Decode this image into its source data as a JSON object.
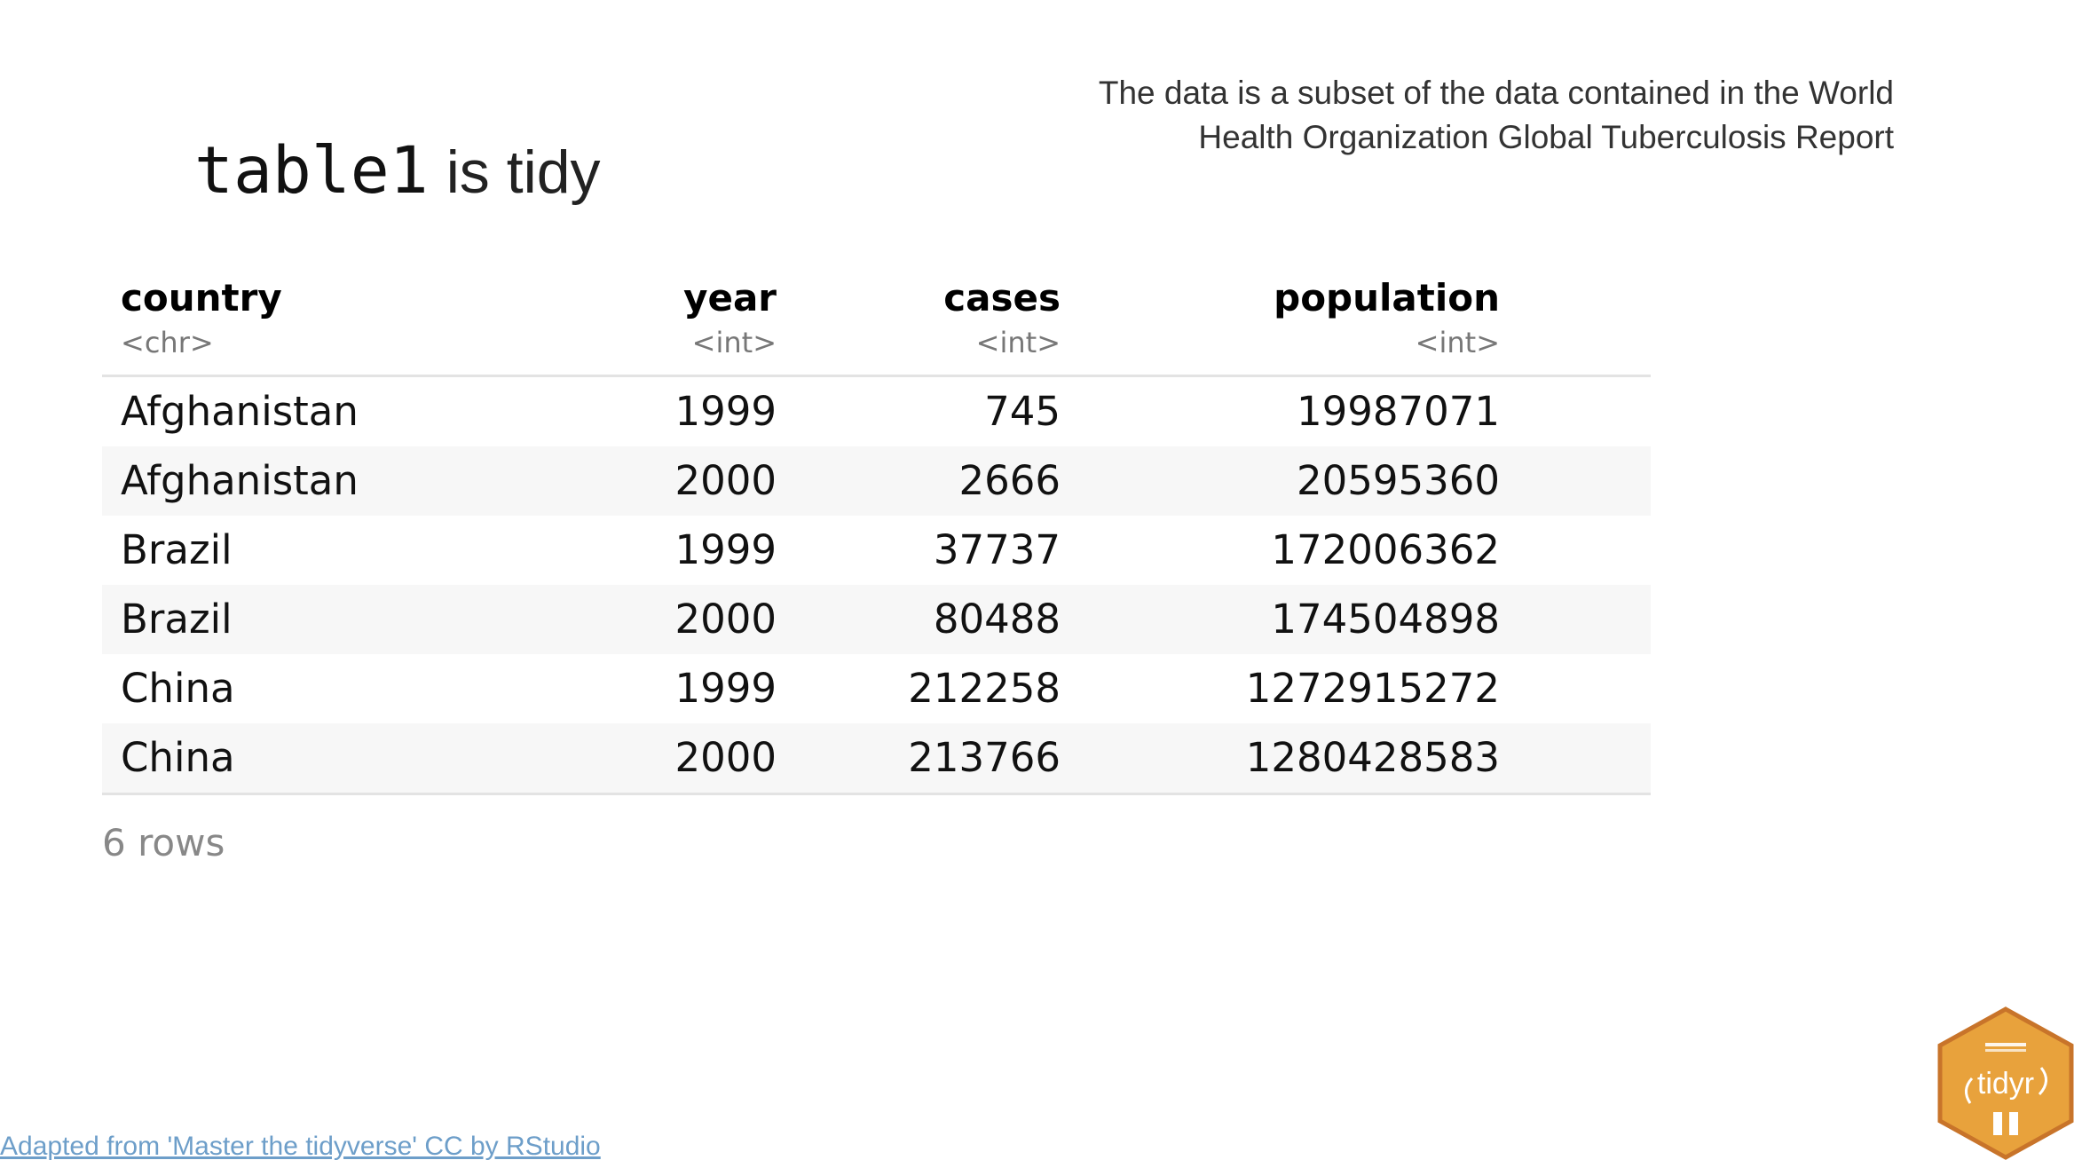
{
  "title": {
    "code": "table1",
    "text": "is tidy"
  },
  "note": "The data is a subset of the data contained in the World Health Organization Global Tuberculosis Report",
  "table": {
    "columns": [
      {
        "name": "country",
        "type": "<chr>"
      },
      {
        "name": "year",
        "type": "<int>"
      },
      {
        "name": "cases",
        "type": "<int>"
      },
      {
        "name": "population",
        "type": "<int>"
      }
    ],
    "rows": [
      [
        "Afghanistan",
        "1999",
        "745",
        "19987071"
      ],
      [
        "Afghanistan",
        "2000",
        "2666",
        "20595360"
      ],
      [
        "Brazil",
        "1999",
        "37737",
        "172006362"
      ],
      [
        "Brazil",
        "2000",
        "80488",
        "174504898"
      ],
      [
        "China",
        "1999",
        "212258",
        "1272915272"
      ],
      [
        "China",
        "2000",
        "213766",
        "1280428583"
      ]
    ],
    "row_count_label": "6 rows"
  },
  "footer": {
    "credit": "Adapted from 'Master the tidyverse' CC by RStudio"
  },
  "logo": {
    "text": "tidyr",
    "icon": "tidyr-hex-logo-icon",
    "fill_color": "#e8a23c",
    "border_color": "#c8742a"
  }
}
